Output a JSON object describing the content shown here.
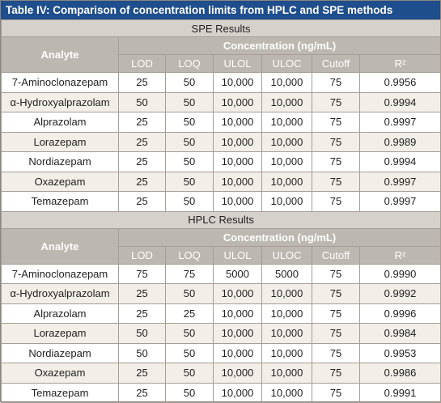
{
  "title": "Table IV: Comparison of concentration limits from HPLC and SPE methods",
  "sections": [
    {
      "title": "SPE Results",
      "header": {
        "analyte": "Analyte",
        "group": "Concentration (ng/mL)",
        "columns": [
          "LOD",
          "LOQ",
          "ULOL",
          "ULOC",
          "Cutoff",
          "R²"
        ]
      },
      "rows": [
        [
          "7-Aminoclonazepam",
          "25",
          "50",
          "10,000",
          "10,000",
          "75",
          "0.9956"
        ],
        [
          "α-Hydroxyalprazolam",
          "50",
          "50",
          "10,000",
          "10,000",
          "75",
          "0.9994"
        ],
        [
          "Alprazolam",
          "25",
          "50",
          "10,000",
          "10,000",
          "75",
          "0.9997"
        ],
        [
          "Lorazepam",
          "25",
          "50",
          "10,000",
          "10,000",
          "75",
          "0.9989"
        ],
        [
          "Nordiazepam",
          "25",
          "50",
          "10,000",
          "10,000",
          "75",
          "0.9994"
        ],
        [
          "Oxazepam",
          "25",
          "50",
          "10,000",
          "10,000",
          "75",
          "0.9997"
        ],
        [
          "Temazepam",
          "25",
          "50",
          "10,000",
          "10,000",
          "75",
          "0.9997"
        ]
      ]
    },
    {
      "title": "HPLC Results",
      "header": {
        "analyte": "Analyte",
        "group": "Concentration (ng/mL)",
        "columns": [
          "LOD",
          "LOQ",
          "ULOL",
          "ULOC",
          "Cutoff",
          "R²"
        ]
      },
      "rows": [
        [
          "7-Aminoclonazepam",
          "75",
          "75",
          "5000",
          "5000",
          "75",
          "0.9990"
        ],
        [
          "α-Hydroxyalprazolam",
          "25",
          "50",
          "10,000",
          "10,000",
          "75",
          "0.9992"
        ],
        [
          "Alprazolam",
          "25",
          "25",
          "10,000",
          "10,000",
          "75",
          "0.9996"
        ],
        [
          "Lorazepam",
          "50",
          "50",
          "10,000",
          "10,000",
          "75",
          "0.9984"
        ],
        [
          "Nordiazepam",
          "50",
          "50",
          "10,000",
          "10,000",
          "75",
          "0.9953"
        ],
        [
          "Oxazepam",
          "25",
          "50",
          "10,000",
          "10,000",
          "75",
          "0.9986"
        ],
        [
          "Temazepam",
          "25",
          "50",
          "10,000",
          "10,000",
          "75",
          "0.9991"
        ]
      ]
    }
  ]
}
